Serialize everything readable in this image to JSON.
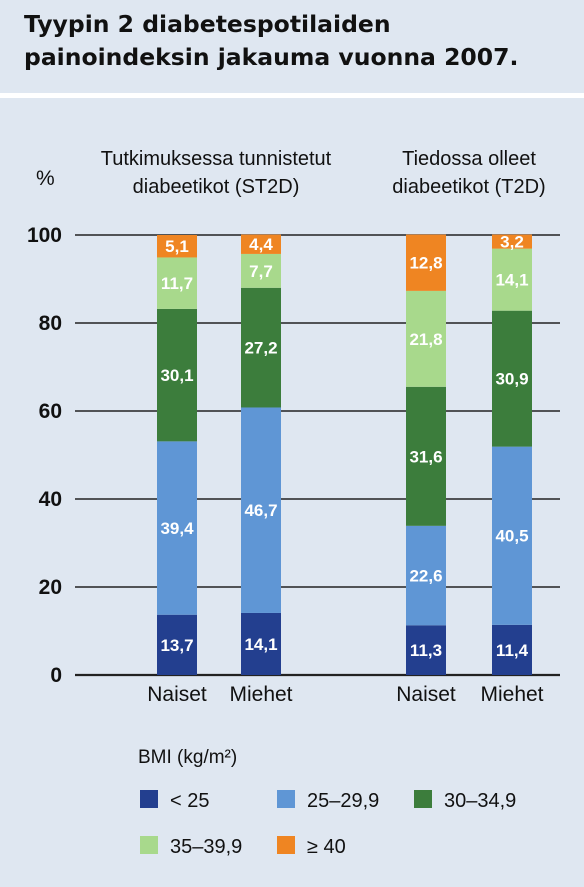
{
  "title": "Tyypin 2 diabetespotilaiden painoindeksin jakauma vuonna 2007.",
  "chart_data": {
    "type": "bar",
    "stacked": true,
    "y_unit_label": "%",
    "ylim": [
      0,
      100
    ],
    "yticks": [
      0,
      20,
      40,
      60,
      80,
      100
    ],
    "categories": [
      "Naiset",
      "Miehet",
      "Naiset",
      "Miehet"
    ],
    "groups": [
      {
        "label_line1": "Tutkimuksessa tunnistetut",
        "label_line2": "diabeetikot (ST2D)",
        "category_indices": [
          0,
          1
        ]
      },
      {
        "label_line1": "Tiedossa olleet",
        "label_line2": "diabeetikot (T2D)",
        "category_indices": [
          2,
          3
        ]
      }
    ],
    "series": [
      {
        "name": "< 25",
        "color": "#233f8f",
        "values": [
          13.7,
          14.1,
          11.3,
          11.4
        ],
        "labels": [
          "13,7",
          "14,1",
          "11,3",
          "11,4"
        ]
      },
      {
        "name": "25–29,9",
        "color": "#5f96d5",
        "values": [
          39.4,
          46.7,
          22.6,
          40.5
        ],
        "labels": [
          "39,4",
          "46,7",
          "22,6",
          "40,5"
        ]
      },
      {
        "name": "30–34,9",
        "color": "#3c7d3c",
        "values": [
          30.1,
          27.2,
          31.6,
          30.9
        ],
        "labels": [
          "30,1",
          "27,2",
          "31,6",
          "30,9"
        ]
      },
      {
        "name": "35–39,9",
        "color": "#a8d98c",
        "values": [
          11.7,
          7.7,
          21.8,
          14.1
        ],
        "labels": [
          "11,7",
          "7,7",
          "21,8",
          "14,1"
        ]
      },
      {
        "name": "≥ 40",
        "color": "#ef8522",
        "values": [
          5.1,
          4.4,
          12.8,
          3.2
        ],
        "labels": [
          "5,1",
          "4,4",
          "12,8",
          "3,2"
        ]
      }
    ],
    "legend_title": "BMI (kg/m²)",
    "legend_placement": "bottom",
    "grid": true
  }
}
